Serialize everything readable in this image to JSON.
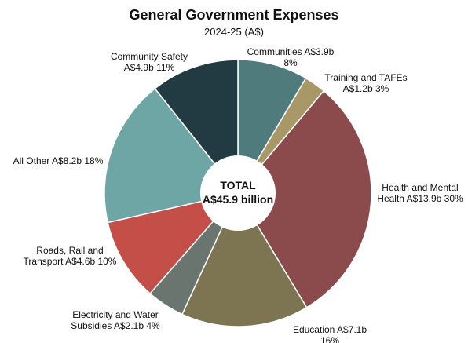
{
  "chart_data": {
    "type": "pie",
    "title": "General Government Expenses",
    "subtitle": "2024-25 (A$)",
    "center_label": [
      "TOTAL",
      "A$45.9 billion"
    ],
    "unit": "A$ billion",
    "slices": [
      {
        "label": "Communities",
        "value": 3.9,
        "percent": 8,
        "value_text": "A$3.9b",
        "percent_text": "8%",
        "color": "#4f7b7c"
      },
      {
        "label": "Training and TAFEs",
        "value": 1.2,
        "percent": 3,
        "value_text": "A$1.2b",
        "percent_text": "3%",
        "color": "#a89868"
      },
      {
        "label": "Health and Mental Health",
        "value": 13.9,
        "percent": 30,
        "value_text": "A$13.9b",
        "percent_text": "30%",
        "color": "#8b4b4c"
      },
      {
        "label": "Education",
        "value": 7.1,
        "percent": 16,
        "value_text": "A$7.1b",
        "percent_text": "16%",
        "color": "#7d7552"
      },
      {
        "label": "Electricity and Water Subsidies",
        "value": 2.1,
        "percent": 4,
        "value_text": "A$2.1b",
        "percent_text": "4%",
        "color": "#6a7570"
      },
      {
        "label": "Roads, Rail and Transport",
        "value": 4.6,
        "percent": 10,
        "value_text": "A$4.6b",
        "percent_text": "10%",
        "color": "#c44f48"
      },
      {
        "label": "All Other",
        "value": 8.2,
        "percent": 18,
        "value_text": "A$8.2b",
        "percent_text": "18%",
        "color": "#6ea6a6"
      },
      {
        "label": "Community Safety",
        "value": 4.9,
        "percent": 11,
        "value_text": "A$4.9b",
        "percent_text": "11%",
        "color": "#223a42"
      }
    ],
    "label_lines": [
      [
        "Communities A$3.9b",
        "8%"
      ],
      [
        "Training and TAFEs",
        "A$1.2b 3%"
      ],
      [
        "Health and Mental",
        "Health A$13.9b 30%"
      ],
      [
        "Education A$7.1b",
        "16%"
      ],
      [
        "Electricity and Water",
        "Subsidies A$2.1b 4%"
      ],
      [
        "Roads, Rail and",
        "Transport A$4.6b 10%"
      ],
      [
        "All Other A$8.2b 18%"
      ],
      [
        "Community Safety",
        "A$4.9b 11%"
      ]
    ]
  }
}
